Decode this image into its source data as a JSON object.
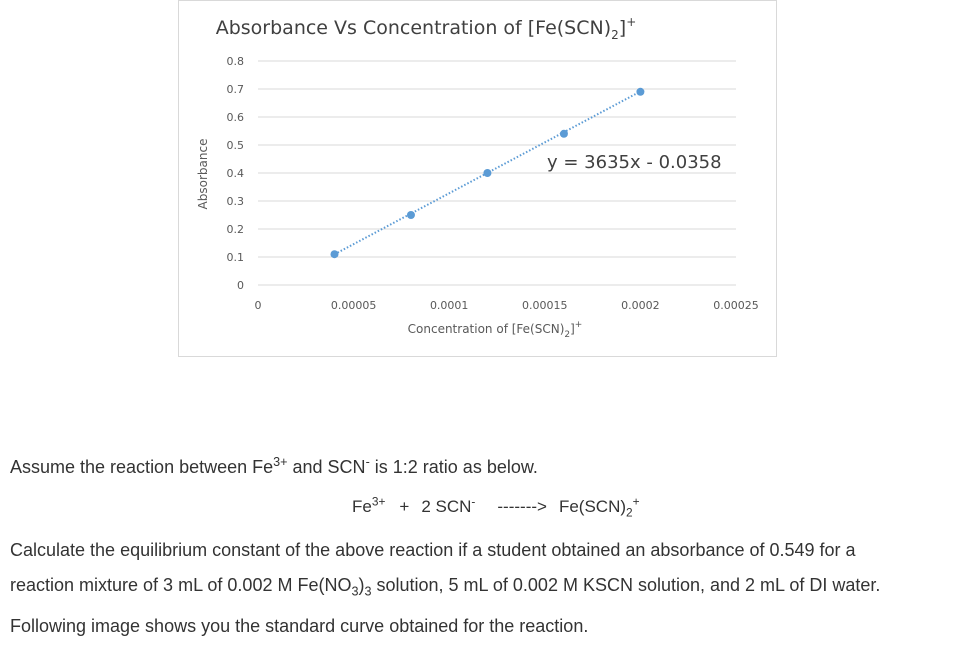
{
  "chart_data": {
    "type": "scatter",
    "title": {
      "prefix": "Absorbance Vs Concentration of [Fe(SCN)",
      "sub": "2",
      "suffix": "]",
      "sup": "+"
    },
    "xlabel": {
      "prefix": "Concentration of [Fe(SCN)",
      "sub": "2",
      "suffix": "]",
      "sup": "+"
    },
    "ylabel": "Absorbance",
    "xlim": [
      0,
      0.00025
    ],
    "ylim": [
      0,
      0.8
    ],
    "x_ticks": [
      "0",
      "0.00005",
      "0.0001",
      "0.00015",
      "0.0002",
      "0.00025"
    ],
    "x_tick_values": [
      0,
      5e-05,
      0.0001,
      0.00015,
      0.0002,
      0.00025
    ],
    "y_ticks": [
      "0",
      "0.1",
      "0.2",
      "0.3",
      "0.4",
      "0.5",
      "0.6",
      "0.7",
      "0.8"
    ],
    "y_tick_values": [
      0,
      0.1,
      0.2,
      0.3,
      0.4,
      0.5,
      0.6,
      0.7,
      0.8
    ],
    "grid": true,
    "series": [
      {
        "x": [
          4e-05,
          8e-05,
          0.00012,
          0.00016,
          0.0002
        ],
        "y": [
          0.11,
          0.25,
          0.4,
          0.54,
          0.69
        ],
        "color": "#5b9bd5"
      }
    ],
    "trendline": {
      "equation": "y = 3635x - 0.0358",
      "slope": 3635,
      "intercept": -0.0358,
      "style": "dotted",
      "color": "#5b9bd5"
    }
  },
  "question": {
    "line1": {
      "a": "Assume the reaction between Fe",
      "a_sup": "3+",
      "b": " and SCN",
      "b_sup": "-",
      "c": " is 1:2 ratio as below."
    },
    "reaction": {
      "reactant1": "Fe",
      "reactant1_sup": "3+",
      "plus": "+",
      "reactant2": "2 SCN",
      "reactant2_sup": "-",
      "arrow": "------->",
      "product": "Fe(SCN)",
      "product_sub": "2",
      "product_sup": "+"
    },
    "line3": "Calculate the equilibrium constant of the above reaction if a student obtained an absorbance of 0.549 for a",
    "line4": {
      "a": "reaction mixture of 3 mL of 0.002 M Fe(NO",
      "a_sub": "3",
      "b": ")",
      "b_sub": "3",
      "c": " solution, 5 mL of 0.002 M KSCN solution, and 2 mL of DI water."
    },
    "line5": "Following image shows you the standard curve obtained for the reaction."
  }
}
